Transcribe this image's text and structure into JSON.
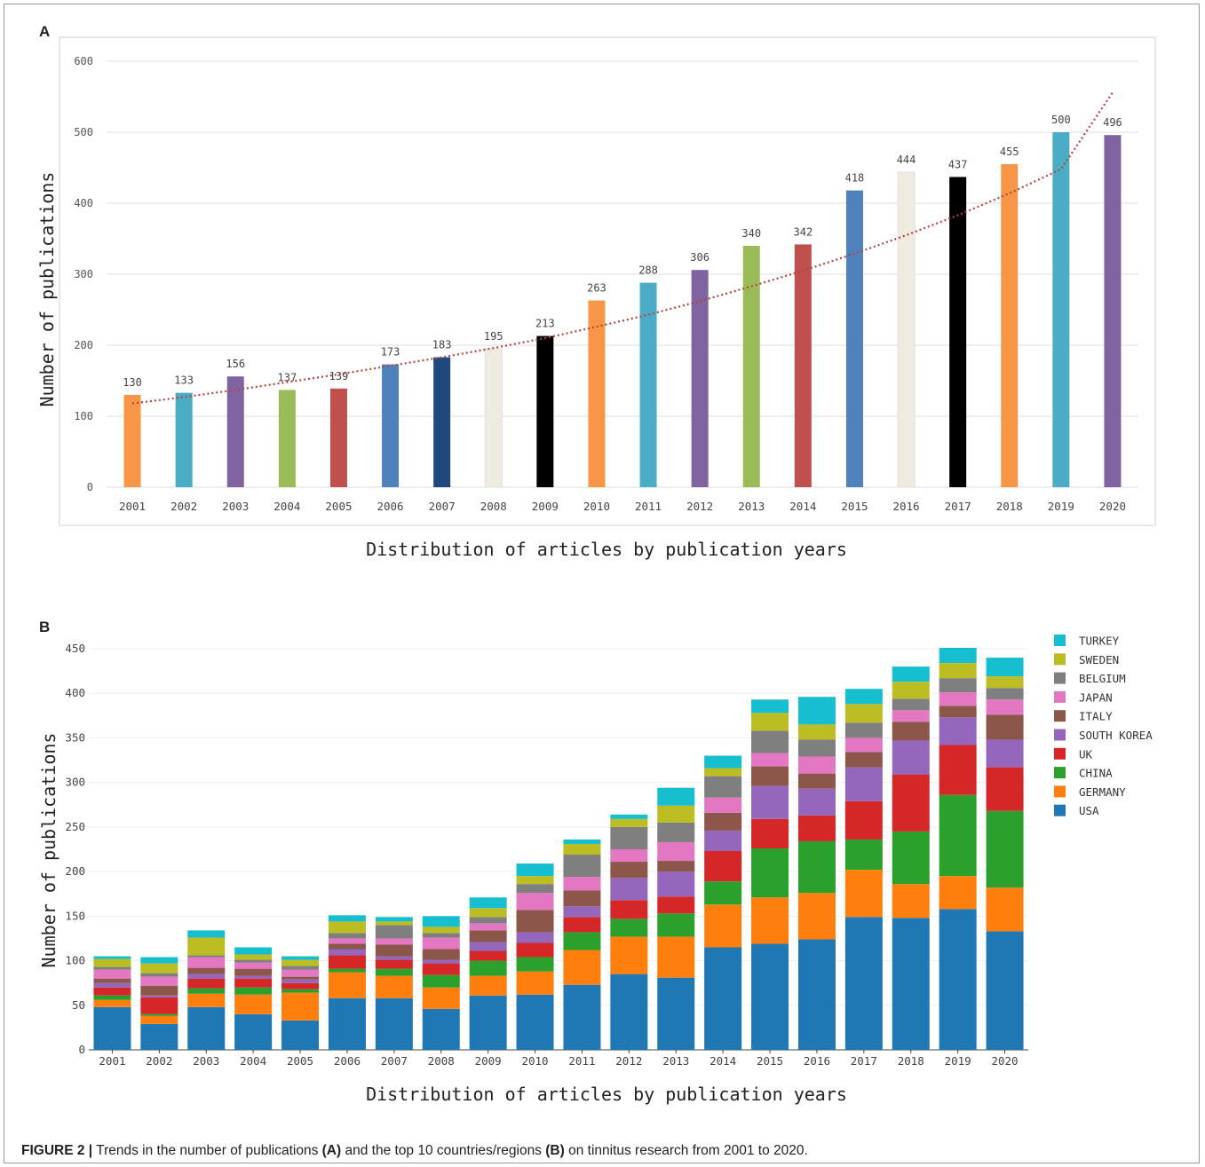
{
  "figure": {
    "panel_a_label": "A",
    "panel_b_label": "B",
    "caption_prefix": "FIGURE 2 |",
    "caption_parts": [
      "Trends in the number of publications ",
      "(A)",
      " and the top 10 countries/regions ",
      "(B)",
      " on tinnitus research from 2001 to 2020."
    ]
  },
  "chart_data": [
    {
      "type": "bar",
      "panel": "A",
      "categories": [
        "2001",
        "2002",
        "2003",
        "2004",
        "2005",
        "2006",
        "2007",
        "2008",
        "2009",
        "2010",
        "2011",
        "2012",
        "2013",
        "2014",
        "2015",
        "2016",
        "2017",
        "2018",
        "2019",
        "2020"
      ],
      "values": [
        130,
        133,
        156,
        137,
        139,
        173,
        183,
        195,
        213,
        263,
        288,
        306,
        340,
        342,
        418,
        444,
        437,
        455,
        500,
        496
      ],
      "bar_colors": [
        "#f79646",
        "#4bacc6",
        "#8064a2",
        "#9bbb59",
        "#c0504d",
        "#4f81bd",
        "#1f497d",
        "#eeece1",
        "#000000",
        "#f79646",
        "#4bacc6",
        "#8064a2",
        "#9bbb59",
        "#c0504d",
        "#4f81bd",
        "#eeece1",
        "#000000",
        "#f79646",
        "#4bacc6",
        "#8064a2"
      ],
      "trendline": {
        "style": "dotted",
        "color": "#b5443f",
        "values": [
          118,
          127,
          137,
          148,
          159,
          171,
          183,
          196,
          210,
          226,
          243,
          262,
          283,
          305,
          329,
          355,
          383,
          414,
          448,
          556
        ]
      },
      "xlabel": "Distribution of articles by publication years",
      "ylabel": "Number of publications",
      "ylim": [
        0,
        600
      ],
      "yticks": [
        0,
        100,
        200,
        300,
        400,
        500,
        600
      ],
      "grid": true,
      "data_labels": true
    },
    {
      "type": "bar",
      "stacked": true,
      "panel": "B",
      "categories": [
        "2001",
        "2002",
        "2003",
        "2004",
        "2005",
        "2006",
        "2007",
        "2008",
        "2009",
        "2010",
        "2011",
        "2012",
        "2013",
        "2014",
        "2015",
        "2016",
        "2017",
        "2018",
        "2019",
        "2020"
      ],
      "series": [
        {
          "name": "USA",
          "color": "#1f77b4",
          "values": [
            48,
            29,
            48,
            40,
            33,
            58,
            58,
            46,
            61,
            62,
            73,
            85,
            81,
            115,
            119,
            124,
            149,
            148,
            158,
            133
          ]
        },
        {
          "name": "GERMANY",
          "color": "#ff7f0e",
          "values": [
            8,
            9,
            15,
            22,
            31,
            29,
            25,
            24,
            22,
            26,
            39,
            42,
            46,
            48,
            52,
            52,
            53,
            38,
            37,
            49
          ]
        },
        {
          "name": "CHINA",
          "color": "#2ca02c",
          "values": [
            5,
            2,
            6,
            8,
            4,
            4,
            8,
            14,
            17,
            16,
            20,
            20,
            26,
            26,
            55,
            58,
            34,
            59,
            91,
            86
          ]
        },
        {
          "name": "UK",
          "color": "#d62728",
          "values": [
            9,
            19,
            11,
            10,
            7,
            15,
            10,
            13,
            11,
            16,
            17,
            21,
            19,
            34,
            33,
            29,
            43,
            64,
            56,
            49
          ]
        },
        {
          "name": "SOUTH KOREA",
          "color": "#9467bd",
          "values": [
            5,
            2,
            5,
            3,
            4,
            7,
            4,
            4,
            10,
            12,
            12,
            25,
            28,
            23,
            37,
            30,
            38,
            38,
            31,
            31
          ]
        },
        {
          "name": "ITALY",
          "color": "#8c564b",
          "values": [
            5,
            11,
            7,
            8,
            3,
            6,
            13,
            12,
            13,
            25,
            18,
            18,
            12,
            20,
            22,
            17,
            17,
            21,
            13,
            28
          ]
        },
        {
          "name": "JAPAN",
          "color": "#e377c2",
          "values": [
            10,
            10,
            12,
            7,
            8,
            6,
            7,
            13,
            8,
            19,
            15,
            14,
            21,
            17,
            15,
            19,
            16,
            13,
            15,
            17
          ]
        },
        {
          "name": "BELGIUM",
          "color": "#7f7f7f",
          "values": [
            3,
            4,
            2,
            3,
            4,
            6,
            15,
            5,
            7,
            10,
            25,
            25,
            22,
            24,
            25,
            19,
            17,
            13,
            16,
            13
          ]
        },
        {
          "name": "SWEDEN",
          "color": "#bcbd22",
          "values": [
            9,
            11,
            20,
            6,
            7,
            13,
            4,
            7,
            10,
            9,
            12,
            9,
            19,
            9,
            20,
            17,
            21,
            19,
            17,
            13
          ]
        },
        {
          "name": "TURKEY",
          "color": "#17becf",
          "values": [
            3,
            7,
            8,
            8,
            4,
            7,
            5,
            12,
            12,
            14,
            5,
            5,
            20,
            14,
            15,
            31,
            17,
            17,
            17,
            21
          ]
        }
      ],
      "legend_order": [
        "TURKEY",
        "SWEDEN",
        "BELGIUM",
        "JAPAN",
        "ITALY",
        "SOUTH KOREA",
        "UK",
        "CHINA",
        "GERMANY",
        "USA"
      ],
      "legend_position": "right",
      "xlabel": "Distribution of articles by publication years",
      "ylabel": "Number of publications",
      "ylim": [
        0,
        450
      ],
      "yticks": [
        0,
        50,
        100,
        150,
        200,
        250,
        300,
        350,
        400,
        450
      ],
      "grid": true
    }
  ]
}
